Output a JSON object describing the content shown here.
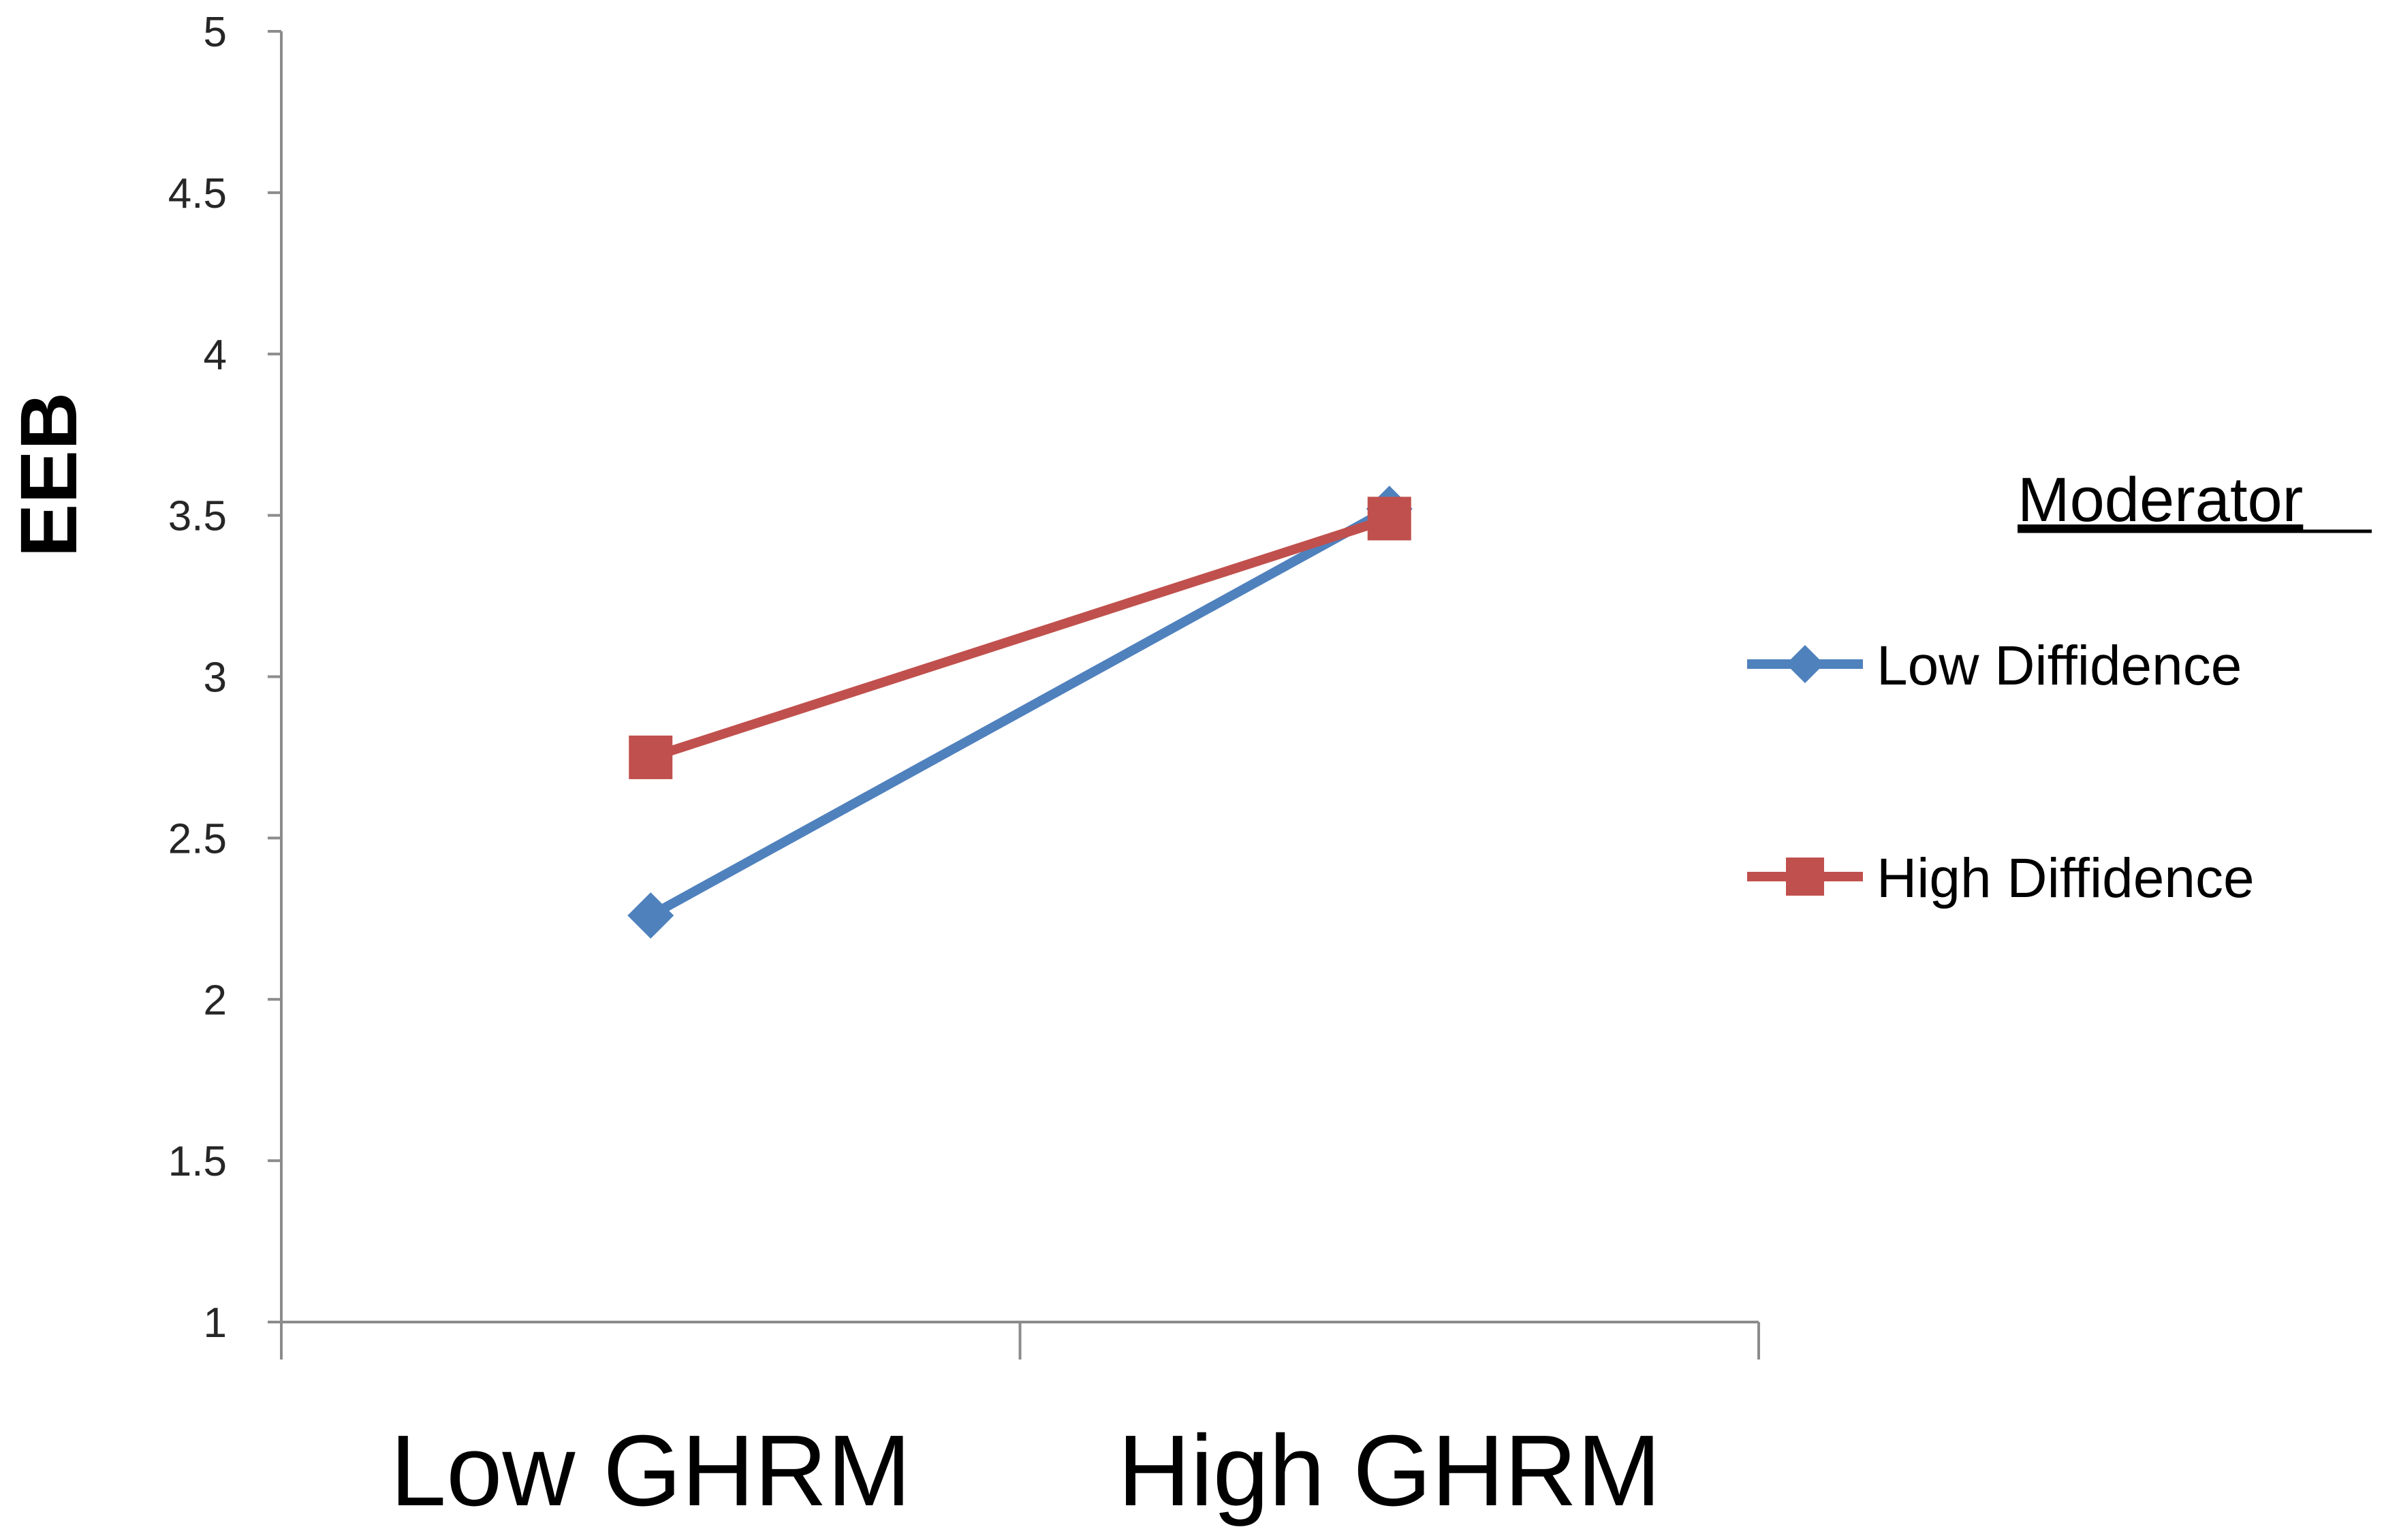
{
  "chart_data": {
    "type": "line",
    "title": "",
    "xlabel": "",
    "ylabel": "EEB",
    "categories": [
      "Low GHRM",
      "High GHRM"
    ],
    "ylim": [
      1,
      5
    ],
    "yticks": [
      1,
      1.5,
      2,
      2.5,
      3,
      3.5,
      4,
      4.5,
      5
    ],
    "ytick_labels": [
      "1",
      "1.5",
      "2",
      "2.5",
      "3",
      "3.5",
      "4",
      "4.5",
      "5"
    ],
    "grid": false,
    "legend": {
      "title": "Moderator",
      "placement": "right"
    },
    "series": [
      {
        "name": "Low Diffidence",
        "values": [
          2.26,
          3.52
        ],
        "color": "#4f81bd",
        "marker": "diamond"
      },
      {
        "name": "High Diffidence",
        "values": [
          2.75,
          3.49
        ],
        "color": "#c0504d",
        "marker": "square"
      }
    ]
  }
}
